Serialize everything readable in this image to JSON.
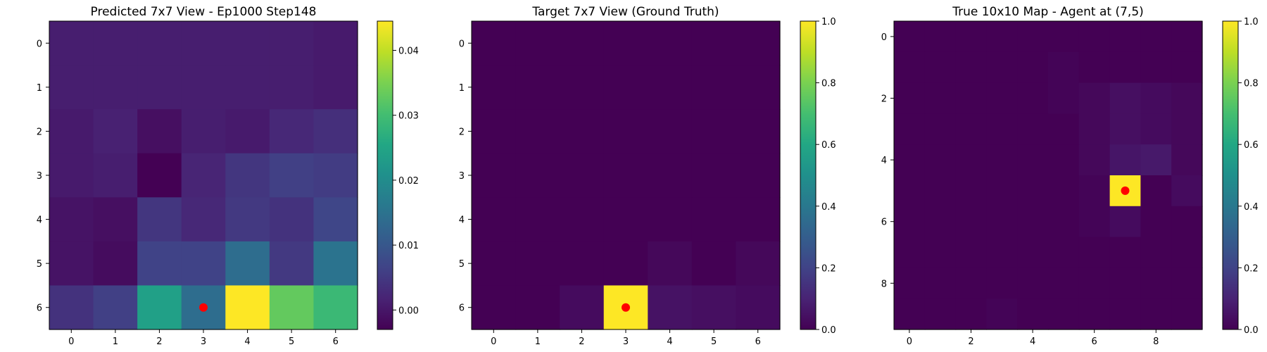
{
  "chart_data": [
    {
      "type": "heatmap",
      "title": "Predicted 7x7 View - Ep1000 Step148",
      "xlabel": "",
      "ylabel": "",
      "size": 7,
      "xticks": [
        0,
        1,
        2,
        3,
        4,
        5,
        6
      ],
      "yticks": [
        0,
        1,
        2,
        3,
        4,
        5,
        6
      ],
      "clim": [
        -0.003,
        0.0445
      ],
      "colorbar_ticks": [
        0.0,
        0.01,
        0.02,
        0.03,
        0.04
      ],
      "colorbar_labels": [
        "0.00",
        "0.01",
        "0.02",
        "0.03",
        "0.04"
      ],
      "values": [
        [
          0.001,
          0.001,
          0.001,
          0.001,
          0.001,
          0.001,
          0.0005
        ],
        [
          0.001,
          0.001,
          0.001,
          0.001,
          0.001,
          0.001,
          0.0005
        ],
        [
          0.0005,
          0.0015,
          -0.001,
          0.001,
          0.0005,
          0.0025,
          0.0035
        ],
        [
          0.0005,
          0.001,
          -0.003,
          0.002,
          0.0045,
          0.006,
          0.0055
        ],
        [
          -0.0005,
          -0.001,
          0.0045,
          0.0025,
          0.005,
          0.004,
          0.007
        ],
        [
          -0.0005,
          -0.0015,
          0.0065,
          0.0065,
          0.014,
          0.005,
          0.015
        ],
        [
          0.004,
          0.006,
          0.024,
          0.014,
          0.0445,
          0.033,
          0.029
        ]
      ],
      "agent_marker": {
        "x": 3,
        "y": 6,
        "color": "#ff0000"
      }
    },
    {
      "type": "heatmap",
      "title": "Target 7x7 View (Ground Truth)",
      "xlabel": "",
      "ylabel": "",
      "size": 7,
      "xticks": [
        0,
        1,
        2,
        3,
        4,
        5,
        6
      ],
      "yticks": [
        0,
        1,
        2,
        3,
        4,
        5,
        6
      ],
      "clim": [
        0,
        1
      ],
      "colorbar_ticks": [
        0.0,
        0.2,
        0.4,
        0.6,
        0.8,
        1.0
      ],
      "colorbar_labels": [
        "0.0",
        "0.2",
        "0.4",
        "0.6",
        "0.8",
        "1.0"
      ],
      "values": [
        [
          0,
          0,
          0,
          0,
          0,
          0,
          0
        ],
        [
          0,
          0,
          0,
          0,
          0,
          0,
          0
        ],
        [
          0,
          0,
          0,
          0,
          0,
          0,
          0
        ],
        [
          0,
          0,
          0,
          0,
          0,
          0,
          0
        ],
        [
          0,
          0,
          0,
          0,
          0,
          0,
          0
        ],
        [
          0,
          0,
          0,
          0,
          0.02,
          0,
          0.02
        ],
        [
          0,
          0,
          0.03,
          1.0,
          0.05,
          0.04,
          0.03
        ]
      ],
      "agent_marker": {
        "x": 3,
        "y": 6,
        "color": "#ff0000"
      }
    },
    {
      "type": "heatmap",
      "title": "True 10x10 Map - Agent at (7,5)",
      "xlabel": "",
      "ylabel": "",
      "size": 10,
      "xticks": [
        0,
        2,
        4,
        6,
        8
      ],
      "yticks": [
        0,
        2,
        4,
        6,
        8
      ],
      "clim": [
        0,
        1
      ],
      "colorbar_ticks": [
        0.0,
        0.2,
        0.4,
        0.6,
        0.8,
        1.0
      ],
      "colorbar_labels": [
        "0.0",
        "0.2",
        "0.4",
        "0.6",
        "0.8",
        "1.0"
      ],
      "values": [
        [
          0,
          0,
          0,
          0,
          0,
          0,
          0,
          0,
          0,
          0
        ],
        [
          0,
          0,
          0,
          0,
          0,
          0.01,
          0,
          0,
          0,
          0
        ],
        [
          0,
          0,
          0,
          0,
          0,
          0.01,
          0.02,
          0.04,
          0.03,
          0.02
        ],
        [
          0,
          0,
          0,
          0,
          0,
          0,
          0.02,
          0.04,
          0.03,
          0.02
        ],
        [
          0,
          0,
          0,
          0,
          0,
          0,
          0.02,
          0.06,
          0.07,
          0.02
        ],
        [
          0,
          0,
          0,
          0,
          0,
          0,
          0.01,
          1.0,
          0,
          0.03
        ],
        [
          0,
          0,
          0,
          0,
          0,
          0,
          0.01,
          0.03,
          0,
          0
        ],
        [
          0,
          0,
          0,
          0,
          0,
          0,
          0,
          0,
          0,
          0
        ],
        [
          0,
          0,
          0,
          0,
          0,
          0,
          0,
          0,
          0,
          0
        ],
        [
          0,
          0,
          0,
          0.01,
          0,
          0,
          0,
          0,
          0,
          0
        ]
      ],
      "agent_marker": {
        "x": 7,
        "y": 5,
        "color": "#ff0000"
      }
    }
  ]
}
